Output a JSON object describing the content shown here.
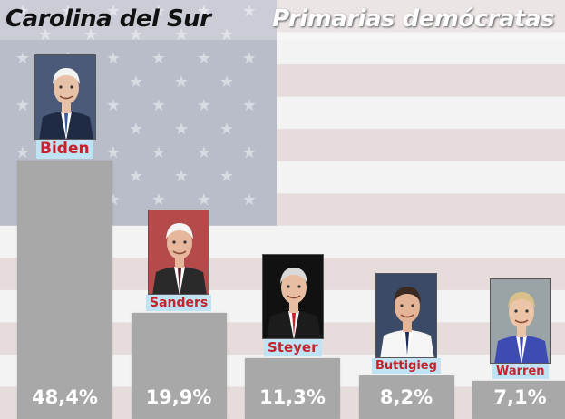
{
  "title": "Carolina del Sur",
  "subtitle": "Primarias demócratas",
  "colors": {
    "bar": "#a8a8a8",
    "name_text": "#c4232c",
    "name_background": "#bfe3f2",
    "stripe_red": "#e6dcdc",
    "stripe_white": "#f3f3f3",
    "canton_blue": "#b9bdc9"
  },
  "chart_data": {
    "type": "bar",
    "categories": [
      "Biden",
      "Sanders",
      "Steyer",
      "Buttigieg",
      "Warren"
    ],
    "values": [
      48.4,
      19.9,
      11.3,
      8.2,
      7.1
    ],
    "value_labels": [
      "48,4%",
      "19,9%",
      "11,3%",
      "8,2%",
      "7,1%"
    ],
    "title": "Carolina del Sur",
    "subtitle": "Primarias demócratas",
    "xlabel": "",
    "ylabel": "",
    "unit": "%",
    "ylim": [
      0,
      48.4
    ],
    "grid": false,
    "legend": "none"
  },
  "candidate_photos": [
    "biden-portrait",
    "sanders-portrait",
    "steyer-portrait",
    "buttigieg-portrait",
    "warren-portrait"
  ]
}
